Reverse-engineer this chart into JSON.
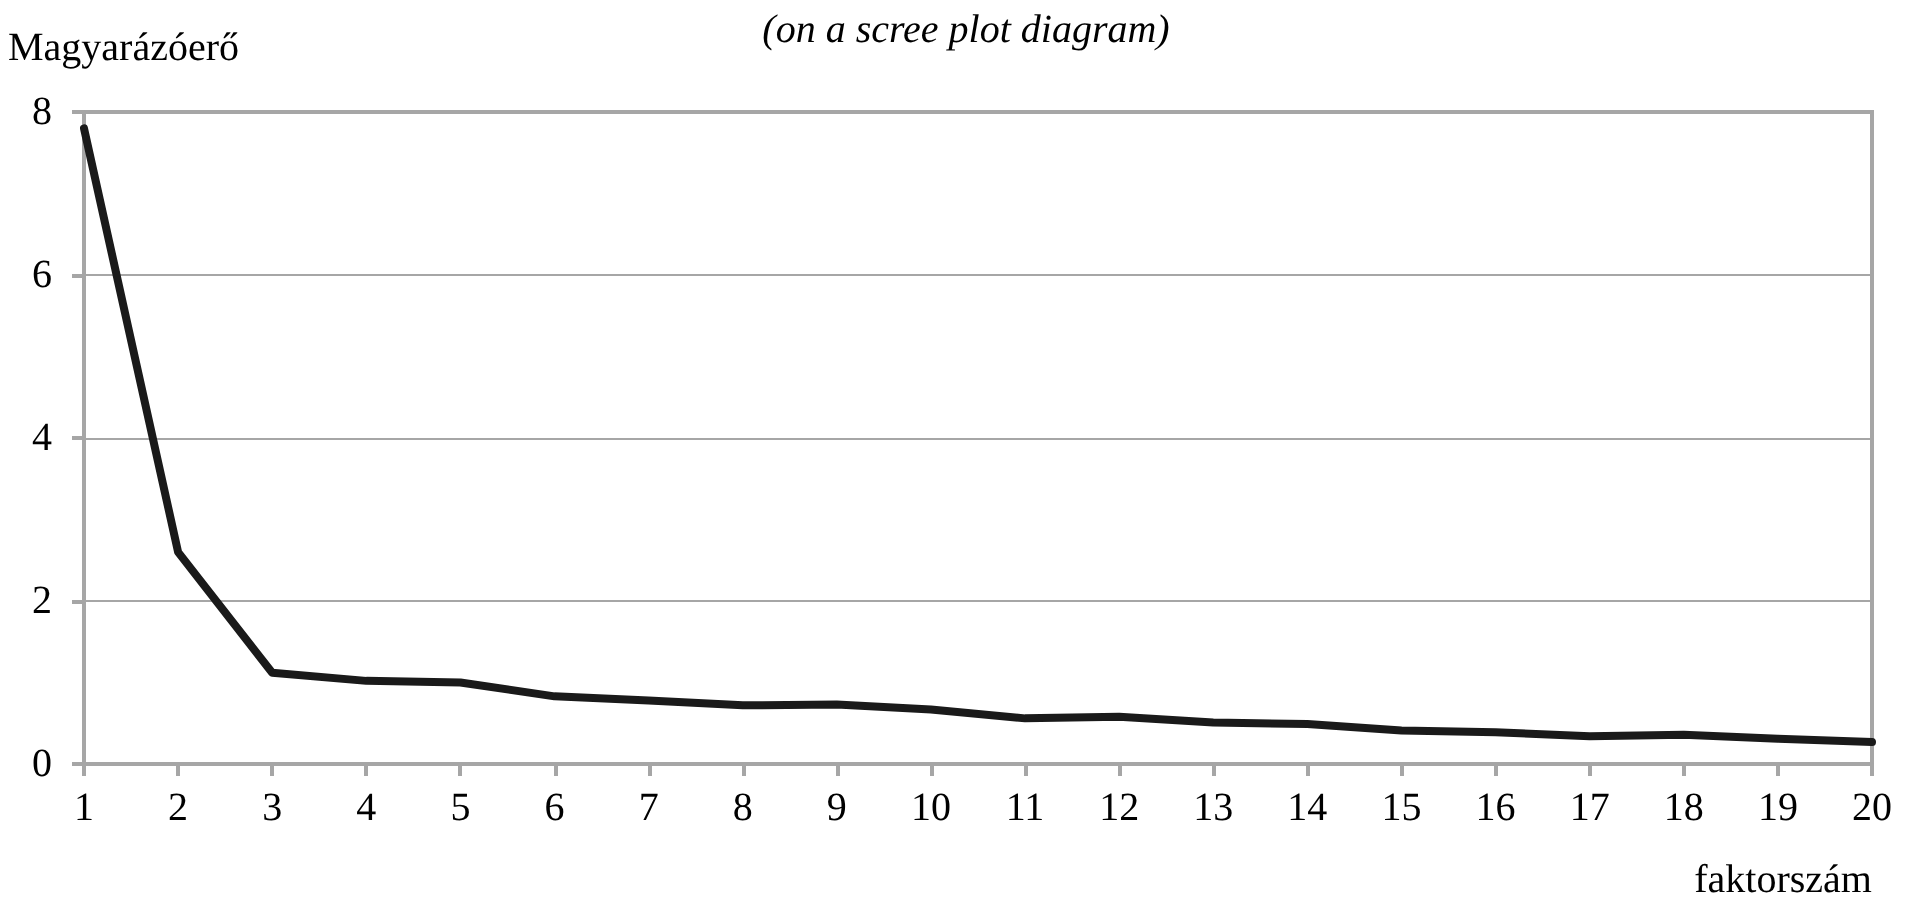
{
  "chart_data": {
    "type": "line",
    "subtitle": "(on a scree plot diagram)",
    "xlabel": "faktorszám",
    "ylabel": "Magyarázóerő",
    "x": [
      1,
      2,
      3,
      4,
      5,
      6,
      7,
      8,
      9,
      10,
      11,
      12,
      13,
      14,
      15,
      16,
      17,
      18,
      19,
      20
    ],
    "xlim": [
      1,
      20
    ],
    "xticks": [
      1,
      2,
      3,
      4,
      5,
      6,
      7,
      8,
      9,
      10,
      11,
      12,
      13,
      14,
      15,
      16,
      17,
      18,
      19,
      20
    ],
    "series": [
      {
        "color": "#1a1a1a",
        "values": [
          7.8,
          2.6,
          1.12,
          1.02,
          1.0,
          0.83,
          0.78,
          0.72,
          0.73,
          0.67,
          0.56,
          0.58,
          0.51,
          0.49,
          0.41,
          0.39,
          0.34,
          0.36,
          0.31,
          0.27
        ]
      }
    ],
    "ylim": [
      0,
      8
    ],
    "yticks": [
      0,
      2,
      4,
      6,
      8
    ],
    "grid": "y",
    "marker": "none",
    "line_style": "solid"
  }
}
